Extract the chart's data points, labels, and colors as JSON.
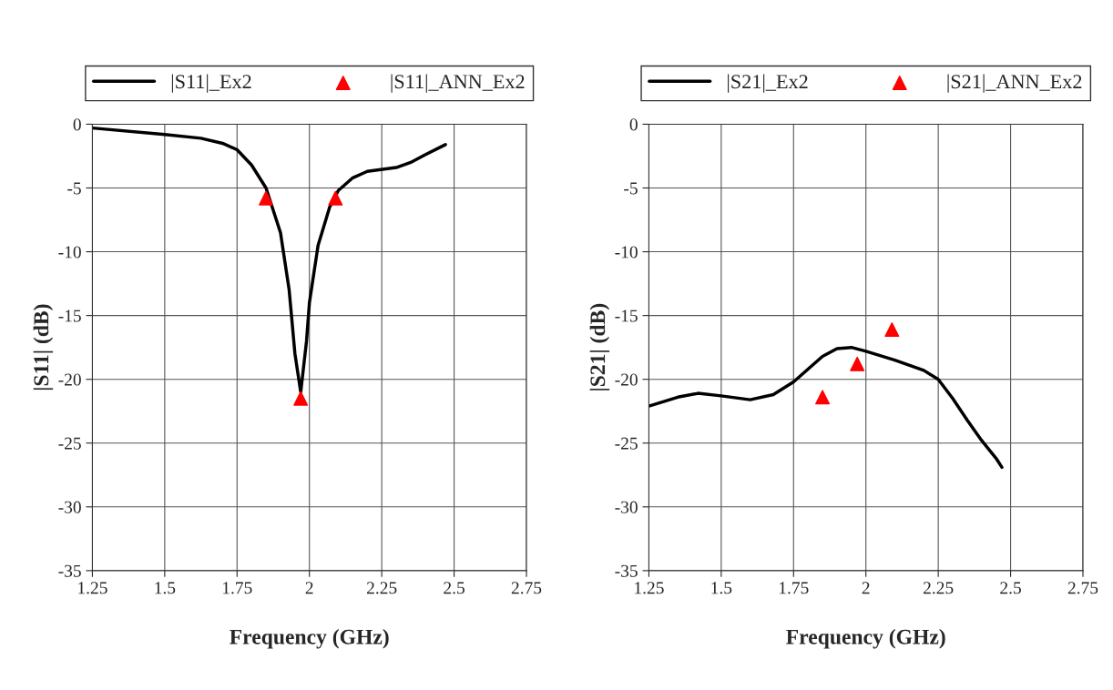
{
  "chart_data": [
    {
      "type": "line",
      "xlabel": "Frequency (GHz)",
      "ylabel": "|S11| (dB)",
      "xlim": [
        1.25,
        2.75
      ],
      "xticks": [
        1.25,
        1.5,
        1.75,
        2,
        2.25,
        2.5,
        2.75
      ],
      "ylim": [
        -35,
        0
      ],
      "yticks": [
        0,
        -5,
        -10,
        -15,
        -20,
        -25,
        -30,
        -35
      ],
      "grid": true,
      "legend": "top",
      "series": [
        {
          "name": "|S11|_Ex2",
          "color": "#000000",
          "marker": "none",
          "x": [
            1.25,
            1.5,
            1.625,
            1.7,
            1.75,
            1.8,
            1.85,
            1.9,
            1.93,
            1.95,
            1.97,
            1.99,
            2.0,
            2.03,
            2.07,
            2.1,
            2.15,
            2.2,
            2.3,
            2.35,
            2.4,
            2.47
          ],
          "values": [
            -0.3,
            -0.8,
            -1.1,
            -1.5,
            -2.0,
            -3.2,
            -5.0,
            -8.5,
            -13,
            -18,
            -21,
            -17,
            -14,
            -9.5,
            -6.5,
            -5.2,
            -4.2,
            -3.7,
            -3.4,
            -3.0,
            -2.4,
            -1.6
          ]
        },
        {
          "name": "|S11|_ANN_Ex2",
          "type": "scatter",
          "color": "#ff0000",
          "marker": "triangle",
          "x": [
            1.85,
            1.97,
            2.09
          ],
          "values": [
            -5.8,
            -21.5,
            -5.8
          ]
        }
      ]
    },
    {
      "type": "line",
      "xlabel": "Frequency (GHz)",
      "ylabel": "|S21| (dB)",
      "xlim": [
        1.25,
        2.75
      ],
      "xticks": [
        1.25,
        1.5,
        1.75,
        2,
        2.25,
        2.5,
        2.75
      ],
      "ylim": [
        -35,
        0
      ],
      "yticks": [
        0,
        -5,
        -10,
        -15,
        -20,
        -25,
        -30,
        -35
      ],
      "grid": true,
      "legend": "top",
      "series": [
        {
          "name": "|S21|_Ex2",
          "color": "#000000",
          "marker": "none",
          "x": [
            1.25,
            1.35,
            1.42,
            1.5,
            1.6,
            1.68,
            1.75,
            1.8,
            1.85,
            1.9,
            1.95,
            2.0,
            2.1,
            2.2,
            2.25,
            2.3,
            2.35,
            2.4,
            2.45,
            2.47
          ],
          "values": [
            -22.1,
            -21.4,
            -21.1,
            -21.3,
            -21.6,
            -21.2,
            -20.2,
            -19.2,
            -18.2,
            -17.6,
            -17.5,
            -17.8,
            -18.5,
            -19.3,
            -20.0,
            -21.5,
            -23.2,
            -24.8,
            -26.2,
            -26.9
          ]
        },
        {
          "name": "|S21|_ANN_Ex2",
          "type": "scatter",
          "color": "#ff0000",
          "marker": "triangle",
          "x": [
            1.85,
            1.97,
            2.09
          ],
          "values": [
            -21.4,
            -18.8,
            -16.1
          ]
        }
      ]
    }
  ]
}
